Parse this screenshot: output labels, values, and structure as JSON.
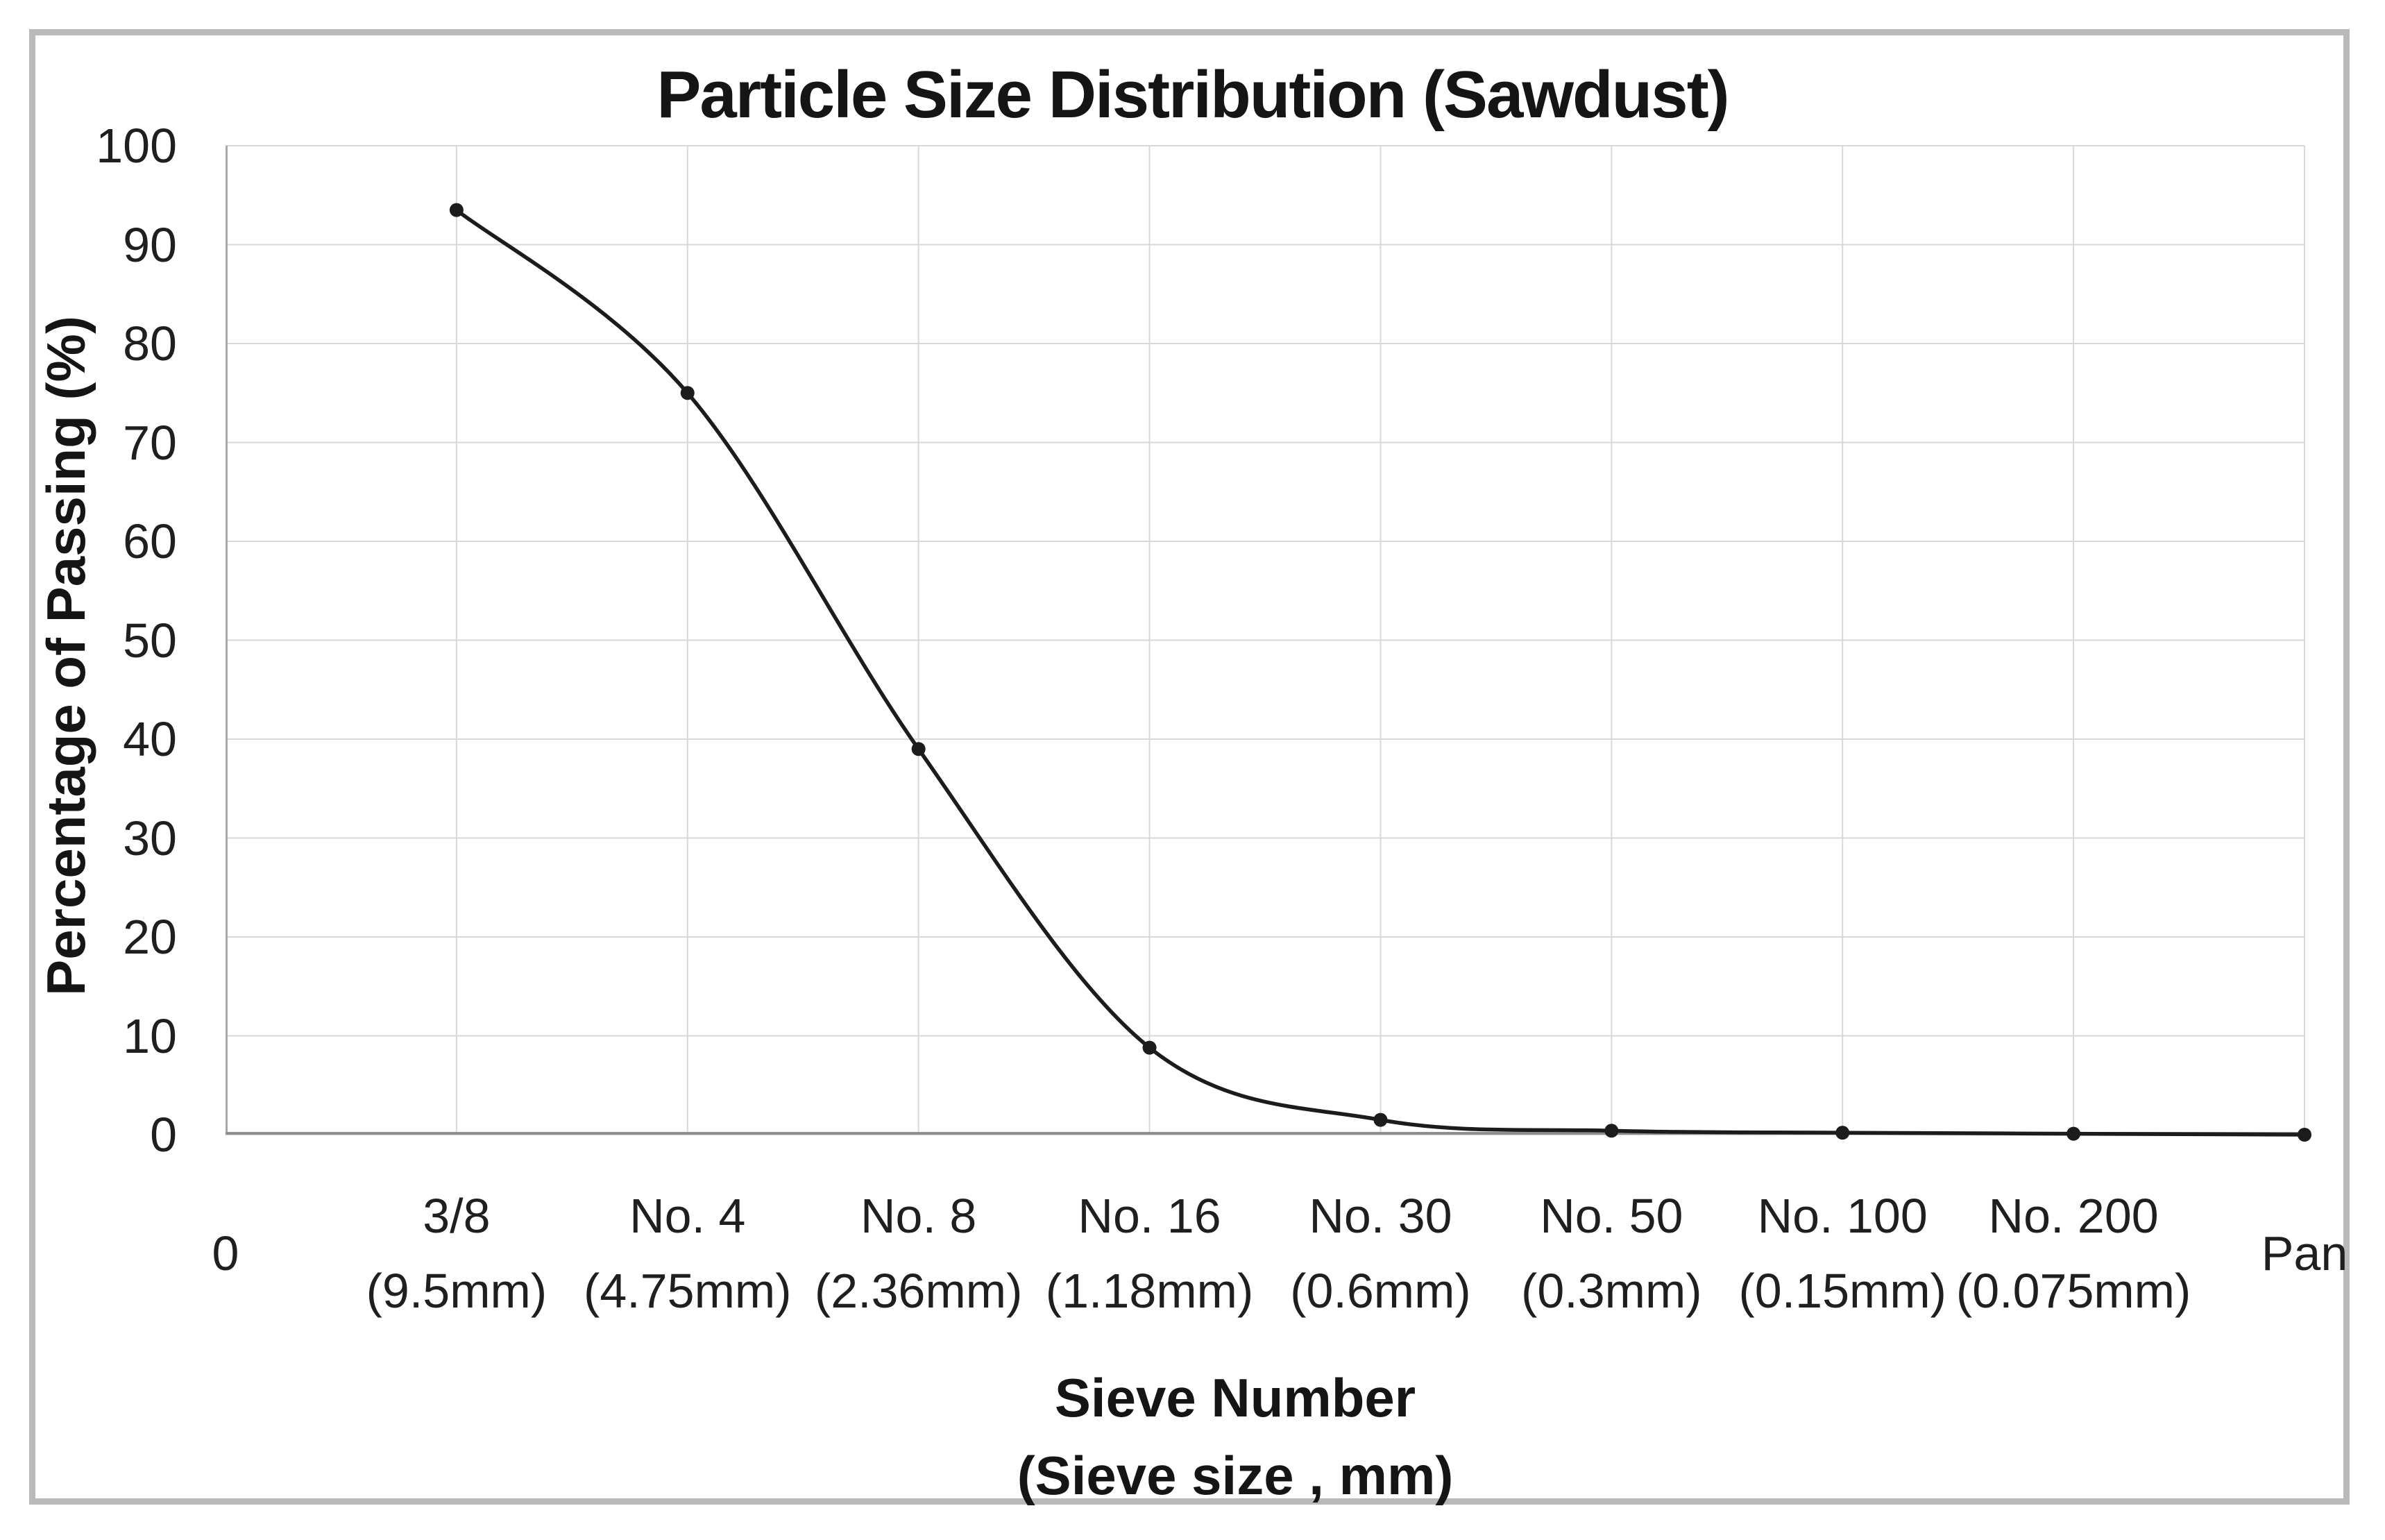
{
  "chart_data": {
    "type": "line",
    "title": "Particle Size Distribution (Sawdust)",
    "ylabel": "Percentage of Passing (%)",
    "xlabel_line1": "Sieve Number",
    "xlabel_line2": "(Sieve size , mm)",
    "origin_tick_label": "0",
    "categories": [
      {
        "number": "3/8",
        "size": "(9.5mm)"
      },
      {
        "number": "No. 4",
        "size": "(4.75mm)"
      },
      {
        "number": "No. 8",
        "size": "(2.36mm)"
      },
      {
        "number": "No. 16",
        "size": "(1.18mm)"
      },
      {
        "number": "No. 30",
        "size": "(0.6mm)"
      },
      {
        "number": "No. 50",
        "size": "(0.3mm)"
      },
      {
        "number": "No. 100",
        "size": "(0.15mm)"
      },
      {
        "number": "No. 200",
        "size": "(0.075mm)"
      },
      {
        "number": "Pan",
        "size": ""
      }
    ],
    "values": [
      93.5,
      75,
      39,
      8.8,
      1.5,
      0.4,
      0.2,
      0.1,
      0
    ],
    "ylim": [
      0,
      100
    ],
    "y_ticks": [
      0,
      10,
      20,
      30,
      40,
      50,
      60,
      70,
      80,
      90,
      100
    ],
    "grid": "both",
    "legend": "none",
    "smooth": true,
    "marker": "circle",
    "colors": {
      "line": "#1c1c1c",
      "marker": "#1c1c1c",
      "gridline": "#d8d8d8",
      "y_axis_line": "#a8a8a8",
      "x_axis_line": "#8f8f8f",
      "frame_border": "#b9b9b9",
      "text": "#1a1a1a",
      "background": "#ffffff"
    }
  }
}
